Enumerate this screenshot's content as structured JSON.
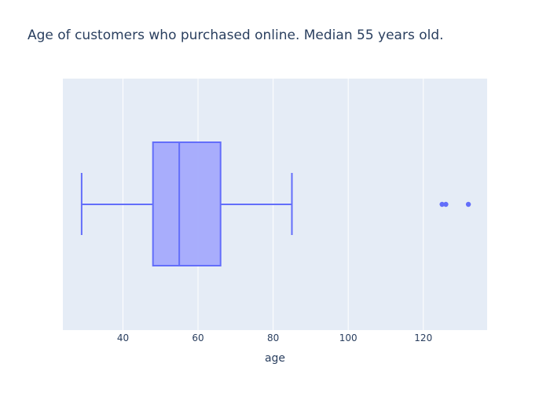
{
  "chart_data": {
    "type": "box",
    "title": "Age of customers who purchased online. Median 55 years old.",
    "xlabel": "age",
    "ylabel": "",
    "orientation": "horizontal",
    "xlim": [
      24,
      137
    ],
    "x_ticks": [
      40,
      60,
      80,
      100,
      120
    ],
    "grid": true,
    "legend": "none",
    "series": [
      {
        "min": 29,
        "q1": 48,
        "median": 55,
        "q3": 66,
        "max": 85,
        "outliers": [
          125,
          126,
          132
        ]
      }
    ],
    "colors": {
      "plot_background": "#e5ecf6",
      "gridline": "#ffffff",
      "box_line": "#636efa",
      "box_fill": "#a4aafc",
      "text": "#2a3f5f"
    }
  }
}
